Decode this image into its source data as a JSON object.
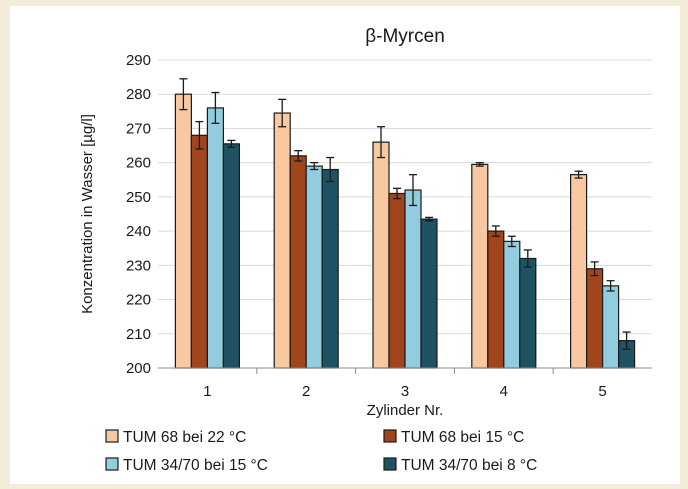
{
  "chart_data": {
    "type": "bar",
    "title": "β-Myrcen",
    "xlabel": "Zylinder Nr.",
    "ylabel": "Konzentration in Wasser [µg/l]",
    "ylim": [
      200,
      290
    ],
    "ytick_step": 10,
    "grid": true,
    "legend_position": "bottom",
    "categories": [
      "1",
      "2",
      "3",
      "4",
      "5"
    ],
    "series": [
      {
        "name": "TUM 68 bei 22 °C",
        "color": "#f8c9a0",
        "values": [
          280,
          274.5,
          266,
          259.5,
          256.5
        ],
        "errors": [
          4.5,
          4,
          4.5,
          0.5,
          1
        ]
      },
      {
        "name": "TUM 68 bei 15 °C",
        "color": "#a0451c",
        "values": [
          268,
          262,
          251,
          240,
          229
        ],
        "errors": [
          4,
          1.5,
          1.5,
          1.5,
          2
        ]
      },
      {
        "name": "TUM 34/70 bei 15 °C",
        "color": "#92cddf",
        "values": [
          276,
          259,
          252,
          237,
          224
        ],
        "errors": [
          4.5,
          1,
          4.5,
          1.5,
          1.5
        ]
      },
      {
        "name": "TUM 34/70 bei 8 °C",
        "color": "#1f5263",
        "values": [
          265.5,
          258,
          243.5,
          232,
          208
        ],
        "errors": [
          1,
          3.5,
          0.5,
          2.5,
          2.5
        ]
      }
    ]
  }
}
